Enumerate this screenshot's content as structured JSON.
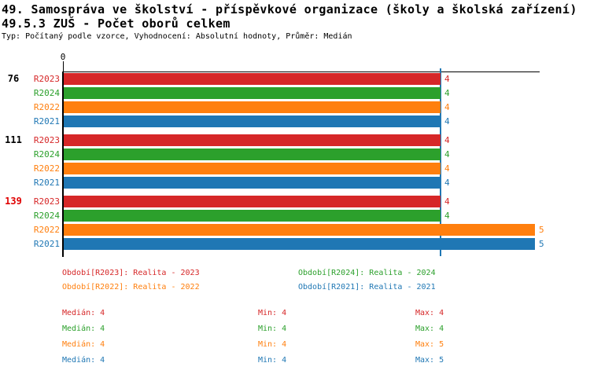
{
  "header": {
    "line1": "49. Samospráva ve školství - příspěvkové organizace (školy a školská zařízení)",
    "line2": "49.5.3 ZUŠ - Počet oborů celkem",
    "meta": "Typ: Počítaný podle vzorce, Vyhodnocení: Absolutní hodnoty, Průměr: Medián"
  },
  "chart_data": {
    "type": "bar",
    "orientation": "horizontal-grouped",
    "title": "49.5.3 ZUŠ - Počet oborů celkem",
    "axis": {
      "origin_label": "0"
    },
    "xlim": [
      0,
      5.05
    ],
    "series_order": [
      "R2023",
      "R2024",
      "R2022",
      "R2021"
    ],
    "colors": {
      "R2023": "#d62728",
      "R2024": "#2ca02c",
      "R2022": "#ff7f0e",
      "R2021": "#1f77b4"
    },
    "median_line": {
      "value": 4,
      "color": "#1f77b4"
    },
    "groups": [
      {
        "label": "76",
        "label_color": "#000000",
        "bars": [
          {
            "series": "R2023",
            "value": 4
          },
          {
            "series": "R2024",
            "value": 4
          },
          {
            "series": "R2022",
            "value": 4
          },
          {
            "series": "R2021",
            "value": 4
          }
        ]
      },
      {
        "label": "111",
        "label_color": "#000000",
        "bars": [
          {
            "series": "R2023",
            "value": 4
          },
          {
            "series": "R2024",
            "value": 4
          },
          {
            "series": "R2022",
            "value": 4
          },
          {
            "series": "R2021",
            "value": 4
          }
        ]
      },
      {
        "label": "139",
        "label_color": "#e00000",
        "bars": [
          {
            "series": "R2023",
            "value": 4
          },
          {
            "series": "R2024",
            "value": 4
          },
          {
            "series": "R2022",
            "value": 5
          },
          {
            "series": "R2021",
            "value": 5
          }
        ]
      }
    ]
  },
  "legend": {
    "items": [
      {
        "series": "R2023",
        "label": "Období[R2023]: Realita - 2023",
        "color": "#d62728"
      },
      {
        "series": "R2024",
        "label": "Období[R2024]: Realita - 2024",
        "color": "#2ca02c"
      },
      {
        "series": "R2022",
        "label": "Období[R2022]: Realita - 2022",
        "color": "#ff7f0e"
      },
      {
        "series": "R2021",
        "label": "Období[R2021]: Realita - 2021",
        "color": "#1f77b4"
      }
    ]
  },
  "stats": {
    "rows": [
      {
        "series": "R2023",
        "color": "#d62728",
        "median_text": "Medián: 4",
        "min_text": "Min: 4",
        "max_text": "Max: 4"
      },
      {
        "series": "R2024",
        "color": "#2ca02c",
        "median_text": "Medián: 4",
        "min_text": "Min: 4",
        "max_text": "Max: 4"
      },
      {
        "series": "R2022",
        "color": "#ff7f0e",
        "median_text": "Medián: 4",
        "min_text": "Min: 4",
        "max_text": "Max: 5"
      },
      {
        "series": "R2021",
        "color": "#1f77b4",
        "median_text": "Medián: 4",
        "min_text": "Min: 4",
        "max_text": "Max: 5"
      }
    ]
  }
}
